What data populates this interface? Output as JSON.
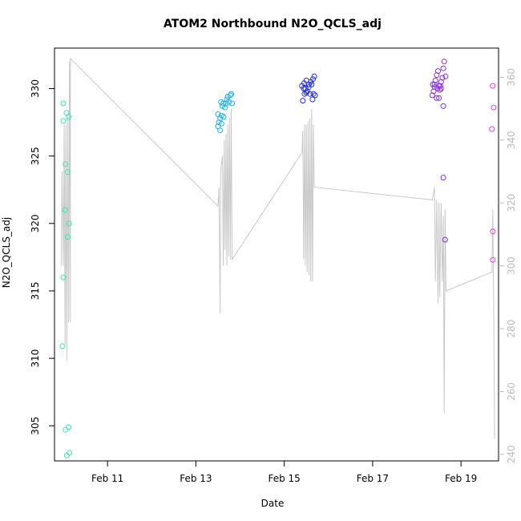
{
  "chart_data": {
    "type": "scatter",
    "title": "ATOM2 Northbound N2O_QCLS_adj",
    "xlabel": "Date",
    "ylabel": "N2O_QCLS_adj",
    "x_unit": "days in February",
    "xlim": [
      9.8,
      19.85
    ],
    "ylim": [
      302.4,
      333.0
    ],
    "y2lim": [
      237.9,
      369.3
    ],
    "x_ticks": [
      {
        "value": 11,
        "label": "Feb 11"
      },
      {
        "value": 13,
        "label": "Feb 13"
      },
      {
        "value": 15,
        "label": "Feb 15"
      },
      {
        "value": 17,
        "label": "Feb 17"
      },
      {
        "value": 19,
        "label": "Feb 19"
      }
    ],
    "y_ticks": [
      {
        "value": 305,
        "label": "305"
      },
      {
        "value": 310,
        "label": "310"
      },
      {
        "value": 315,
        "label": "315"
      },
      {
        "value": 320,
        "label": "320"
      },
      {
        "value": 325,
        "label": "325"
      },
      {
        "value": 330,
        "label": "330"
      }
    ],
    "y2_ticks": [
      {
        "value": 240,
        "label": "240"
      },
      {
        "value": 260,
        "label": "260"
      },
      {
        "value": 280,
        "label": "280"
      },
      {
        "value": 300,
        "label": "300"
      },
      {
        "value": 320,
        "label": "320"
      },
      {
        "value": 340,
        "label": "340"
      },
      {
        "value": 360,
        "label": "360"
      }
    ],
    "grid": false,
    "colors": {
      "axis": "#000000",
      "secondary_axis": "#bbbbbb",
      "line": "#c8c8c8"
    },
    "series": [
      {
        "color": "#33e8b0",
        "points": [
          [
            10.0,
            328.9
          ],
          [
            10.0,
            327.6
          ],
          [
            10.07,
            328.2
          ],
          [
            10.12,
            327.9
          ],
          [
            10.05,
            324.4
          ],
          [
            10.1,
            323.8
          ],
          [
            10.04,
            321.0
          ],
          [
            10.13,
            320.0
          ],
          [
            10.1,
            319.0
          ],
          [
            10.0,
            316.0
          ],
          [
            9.98,
            310.9
          ],
          [
            10.05,
            304.7
          ],
          [
            10.12,
            304.9
          ],
          [
            10.08,
            302.8
          ],
          [
            10.14,
            303.0
          ]
        ]
      },
      {
        "color": "#1ab0f0",
        "points": [
          [
            13.5,
            327.2
          ],
          [
            13.52,
            327.5
          ],
          [
            13.55,
            327.8
          ],
          [
            13.5,
            328.1
          ],
          [
            13.58,
            328.0
          ],
          [
            13.6,
            328.7
          ],
          [
            13.62,
            328.9
          ],
          [
            13.58,
            327.4
          ],
          [
            13.55,
            326.9
          ],
          [
            13.66,
            328.6
          ],
          [
            13.68,
            328.9
          ],
          [
            13.7,
            329.2
          ],
          [
            13.72,
            329.4
          ],
          [
            13.75,
            329.0
          ],
          [
            13.78,
            329.5
          ],
          [
            13.8,
            329.6
          ],
          [
            13.63,
            327.9
          ],
          [
            13.57,
            329.0
          ],
          [
            13.82,
            328.9
          ]
        ]
      },
      {
        "color": "#2030d8",
        "points": [
          [
            15.4,
            330.2
          ],
          [
            15.45,
            330.4
          ],
          [
            15.5,
            330.6
          ],
          [
            15.48,
            330.0
          ],
          [
            15.52,
            329.8
          ],
          [
            15.55,
            330.1
          ],
          [
            15.58,
            329.6
          ],
          [
            15.6,
            330.5
          ],
          [
            15.62,
            330.3
          ],
          [
            15.65,
            330.7
          ],
          [
            15.68,
            330.9
          ],
          [
            15.7,
            329.5
          ],
          [
            15.42,
            329.1
          ],
          [
            15.46,
            329.6
          ],
          [
            15.56,
            330.3
          ],
          [
            15.64,
            329.2
          ],
          [
            15.66,
            329.6
          ],
          [
            15.5,
            329.7
          ],
          [
            15.44,
            330.0
          ]
        ]
      },
      {
        "color": "#8a2ee0",
        "points": [
          [
            18.35,
            329.5
          ],
          [
            18.38,
            329.8
          ],
          [
            18.4,
            330.1
          ],
          [
            18.42,
            330.6
          ],
          [
            18.45,
            331.0
          ],
          [
            18.48,
            331.3
          ],
          [
            18.5,
            330.2
          ],
          [
            18.52,
            329.9
          ],
          [
            18.55,
            330.5
          ],
          [
            18.58,
            330.8
          ],
          [
            18.6,
            331.5
          ],
          [
            18.62,
            332.0
          ],
          [
            18.65,
            330.9
          ],
          [
            18.45,
            329.3
          ],
          [
            18.5,
            329.3
          ],
          [
            18.55,
            330.0
          ],
          [
            18.6,
            328.7
          ],
          [
            18.6,
            323.4
          ],
          [
            18.64,
            318.8
          ],
          [
            18.4,
            330.3
          ],
          [
            18.47,
            330.0
          ],
          [
            18.53,
            330.2
          ],
          [
            18.36,
            330.3
          ]
        ]
      },
      {
        "color": "#e040d8",
        "points": [
          [
            19.72,
            330.2
          ],
          [
            19.74,
            328.6
          ],
          [
            19.7,
            327.0
          ],
          [
            19.72,
            319.4
          ],
          [
            19.72,
            317.3
          ]
        ]
      }
    ],
    "line_series": {
      "axis": "secondary",
      "points": [
        [
          9.95,
          300
        ],
        [
          9.97,
          330
        ],
        [
          10.0,
          300
        ],
        [
          10.02,
          345
        ],
        [
          10.04,
          275
        ],
        [
          10.06,
          345
        ],
        [
          10.08,
          270
        ],
        [
          10.1,
          348
        ],
        [
          10.12,
          282
        ],
        [
          10.14,
          365
        ],
        [
          10.16,
          282
        ],
        [
          10.16,
          366
        ],
        [
          13.5,
          319
        ],
        [
          13.52,
          325
        ],
        [
          13.55,
          285
        ],
        [
          13.56,
          330
        ],
        [
          13.6,
          335
        ],
        [
          13.62,
          300
        ],
        [
          13.64,
          340
        ],
        [
          13.66,
          305
        ],
        [
          13.68,
          342
        ],
        [
          13.7,
          300
        ],
        [
          13.72,
          345
        ],
        [
          13.74,
          303
        ],
        [
          13.76,
          347
        ],
        [
          13.78,
          302
        ],
        [
          13.8,
          350
        ],
        [
          13.82,
          302
        ],
        [
          15.4,
          336
        ],
        [
          15.42,
          343
        ],
        [
          15.44,
          302
        ],
        [
          15.46,
          345
        ],
        [
          15.48,
          300
        ],
        [
          15.5,
          345
        ],
        [
          15.52,
          298
        ],
        [
          15.54,
          346
        ],
        [
          15.56,
          297
        ],
        [
          15.58,
          347
        ],
        [
          15.6,
          295
        ],
        [
          15.62,
          350
        ],
        [
          15.64,
          295
        ],
        [
          15.66,
          345
        ],
        [
          15.68,
          325
        ],
        [
          18.35,
          321
        ],
        [
          18.4,
          325
        ],
        [
          18.42,
          295
        ],
        [
          18.45,
          321
        ],
        [
          18.48,
          288
        ],
        [
          18.5,
          320
        ],
        [
          18.52,
          290
        ],
        [
          18.55,
          320
        ],
        [
          18.58,
          295
        ],
        [
          18.6,
          316
        ],
        [
          18.62,
          253
        ],
        [
          18.64,
          318
        ],
        [
          18.66,
          292
        ],
        [
          19.7,
          298
        ],
        [
          19.72,
          318
        ],
        [
          19.74,
          288
        ],
        [
          19.76,
          245
        ]
      ]
    }
  }
}
